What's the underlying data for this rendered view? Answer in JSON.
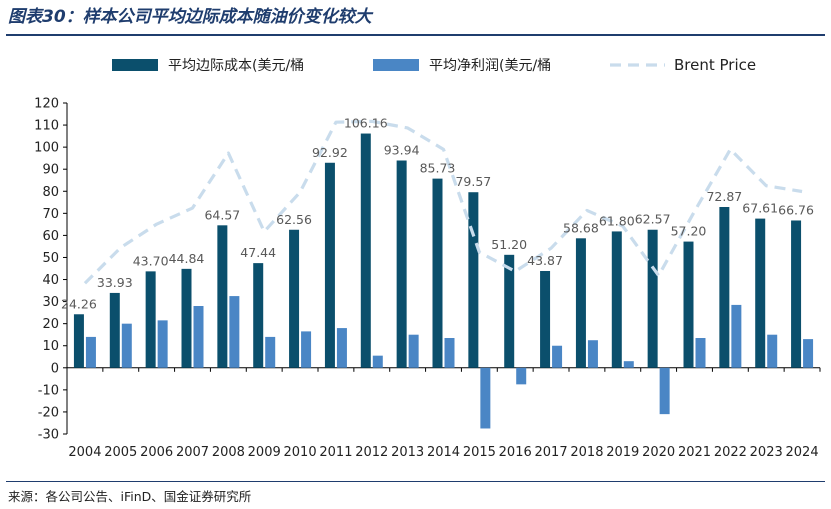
{
  "header": {
    "title": "图表30：样本公司平均边际成本随油价变化较大"
  },
  "footer": {
    "source": "来源：各公司公告、iFinD、国金证券研究所"
  },
  "chart_data": {
    "type": "bar",
    "title": "图表30：样本公司平均边际成本随油价变化较大",
    "categories": [
      "2004",
      "2005",
      "2006",
      "2007",
      "2008",
      "2009",
      "2010",
      "2011",
      "2012",
      "2013",
      "2014",
      "2015",
      "2016",
      "2017",
      "2018",
      "2019",
      "2020",
      "2021",
      "2022",
      "2023",
      "2024"
    ],
    "ylim": [
      -30,
      120
    ],
    "yticks": [
      -30,
      -20,
      -10,
      0,
      10,
      20,
      30,
      40,
      50,
      60,
      70,
      80,
      90,
      100,
      110,
      120
    ],
    "legend_position": "top",
    "series": [
      {
        "name": "平均边际成本(美元/桶",
        "type": "bar",
        "color": "#0b4f6c",
        "values": [
          24.26,
          33.93,
          43.7,
          44.84,
          64.57,
          47.44,
          62.56,
          92.92,
          106.16,
          93.94,
          85.73,
          79.57,
          51.2,
          43.87,
          58.68,
          61.8,
          62.57,
          57.2,
          72.87,
          67.61,
          66.76
        ],
        "labels": [
          "24.26",
          "33.93",
          "43.70",
          "44.84",
          "64.57",
          "47.44",
          "62.56",
          "92.92",
          "106.16",
          "93.94",
          "85.73",
          "79.57",
          "51.20",
          "43.87",
          "58.68",
          "61.80",
          "62.57",
          "57.20",
          "72.87",
          "67.61",
          "66.76"
        ]
      },
      {
        "name": "平均净利润(美元/桶",
        "type": "bar",
        "color": "#4a86c5",
        "values": [
          14,
          20,
          21.5,
          28,
          32.5,
          14,
          16.5,
          18,
          5.5,
          15,
          13.5,
          -27.5,
          -7.5,
          10,
          12.5,
          3,
          -21,
          13.5,
          28.5,
          15,
          13
        ]
      },
      {
        "name": "Brent Price",
        "type": "line",
        "style": "dashed",
        "color": "#c9dcec",
        "values": [
          38.3,
          54.5,
          65.1,
          72.4,
          97.3,
          61.7,
          79.6,
          111.3,
          111.7,
          108.7,
          99.0,
          52.4,
          43.7,
          54.2,
          71.3,
          64.2,
          41.8,
          70.9,
          99.0,
          82.5,
          79.9
        ]
      }
    ]
  }
}
